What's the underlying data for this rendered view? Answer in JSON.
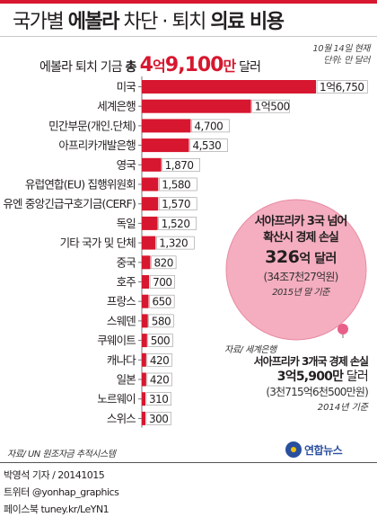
{
  "colors": {
    "bar": "#d7172f",
    "circle": "#f4aec0",
    "circle_stroke": "#e98aa3",
    "dot": "#e8608a",
    "accent_red": "#d7172f"
  },
  "header": {
    "title_prefix": "국가별 ",
    "title_bold1": "에볼라",
    "title_mid": " 차단 · 퇴치 ",
    "title_bold2": "의료 비용"
  },
  "total": {
    "prefix": "에볼라 퇴치 기금 ",
    "bold": "총 ",
    "big1": "4",
    "mid1": "억",
    "big2": "9,100",
    "mid2": "만",
    "suffix": " 달러"
  },
  "asof": {
    "date": "10월 14일 현재",
    "unit": "단위: 만 달러"
  },
  "chart_data": {
    "type": "bar",
    "orientation": "horizontal",
    "unit": "만 달러",
    "categories": [
      "미국",
      "세계은행",
      "민간부문(개인.단체)",
      "아프리카개발은행",
      "영국",
      "유럽연합(EU) 집행위원회",
      "유엔 중앙긴급구호기금(CERF)",
      "독일",
      "기타 국가 및 단체",
      "중국",
      "호주",
      "프랑스",
      "스웨덴",
      "쿠웨이트",
      "캐나다",
      "일본",
      "노르웨이",
      "스위스"
    ],
    "values": [
      16750,
      10500,
      4700,
      4530,
      1870,
      1580,
      1570,
      1520,
      1320,
      820,
      700,
      650,
      580,
      500,
      420,
      420,
      310,
      300
    ],
    "value_labels": [
      "1억6,750",
      "1억500",
      "4,700",
      "4,530",
      "1,870",
      "1,580",
      "1,570",
      "1,520",
      "1,320",
      "820",
      "700",
      "650",
      "580",
      "500",
      "420",
      "420",
      "310",
      "300"
    ],
    "title": "국가별 에볼라 차단 · 퇴치 의료 비용"
  },
  "circle_note": {
    "line1": "서아프리카 3국 넘어",
    "line2": "확산시 경제 손실",
    "amount": "326",
    "amount_unit": "억 달러",
    "krw": "(34조7천27억원)",
    "basis": "2015년 말 기준"
  },
  "small_note": {
    "source": "자료/ 세계은행",
    "line1": "서아프리카 3개국 경제 손실",
    "amount": "3억5,900만",
    "amount_unit": " 달러",
    "krw": "(3천715억6천500만원)",
    "basis": "2014년 기준"
  },
  "source": "자료/ UN 원조자금 추적시스템",
  "logo": "연합뉴스",
  "footer": {
    "author": "박영석 기자 / 20141015",
    "twitter": "트위터 @yonhap_graphics",
    "facebook": "페이스북 tuney.kr/LeYN1"
  }
}
